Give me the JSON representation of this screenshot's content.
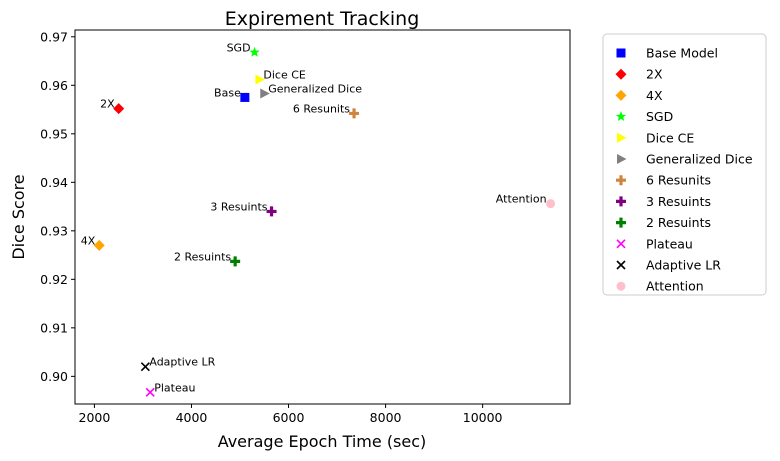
{
  "chart_data": {
    "type": "scatter",
    "title": "Expirement Tracking",
    "xlabel": "Average Epoch Time (sec)",
    "ylabel": "Dice Score",
    "xlim": [
      1600,
      11800
    ],
    "ylim": [
      0.8943,
      0.9714
    ],
    "xticks": [
      2000,
      4000,
      6000,
      8000,
      10000
    ],
    "yticks": [
      0.9,
      0.91,
      0.92,
      0.93,
      0.94,
      0.95,
      0.96,
      0.97
    ],
    "grid": false,
    "legend_position": "outside-right",
    "series": [
      {
        "name": "Base Model",
        "marker": "square",
        "color": "#0000ff",
        "x": 5100,
        "y": 0.9575,
        "label": "Base",
        "label_align": "right"
      },
      {
        "name": "2X",
        "marker": "diamond",
        "color": "#ff0000",
        "x": 2500,
        "y": 0.9552,
        "label": "2X",
        "label_align": "right"
      },
      {
        "name": "4X",
        "marker": "diamond",
        "color": "#ffa500",
        "x": 2100,
        "y": 0.927,
        "label": "4X",
        "label_align": "right"
      },
      {
        "name": "SGD",
        "marker": "star",
        "color": "#00ff00",
        "x": 5300,
        "y": 0.9668,
        "label": "SGD",
        "label_align": "right"
      },
      {
        "name": "Dice CE",
        "marker": "triangle-right",
        "color": "#ffff00",
        "x": 5400,
        "y": 0.9612,
        "label": "Dice CE",
        "label_align": "left"
      },
      {
        "name": "Generalized Dice",
        "marker": "triangle-right",
        "color": "#808080",
        "x": 5500,
        "y": 0.9583,
        "label": "Generalized Dice",
        "label_align": "left"
      },
      {
        "name": "6 Resunits",
        "marker": "plus",
        "color": "#cd853f",
        "x": 7350,
        "y": 0.9542,
        "label": "6 Resunits",
        "label_align": "right"
      },
      {
        "name": "3 Resuints",
        "marker": "plus",
        "color": "#800080",
        "x": 5650,
        "y": 0.934,
        "label": "3 Resuints",
        "label_align": "right"
      },
      {
        "name": "2 Resuints",
        "marker": "plus",
        "color": "#008000",
        "x": 4900,
        "y": 0.9237,
        "label": "2 Resuints",
        "label_align": "right"
      },
      {
        "name": "Plateau",
        "marker": "x",
        "color": "#ff00ff",
        "x": 3150,
        "y": 0.8967,
        "label": "Plateau",
        "label_align": "left"
      },
      {
        "name": "Adaptive LR",
        "marker": "x",
        "color": "#000000",
        "x": 3050,
        "y": 0.902,
        "label": "Adaptive LR",
        "label_align": "left"
      },
      {
        "name": "Attention",
        "marker": "circle",
        "color": "#ffc0cb",
        "x": 11400,
        "y": 0.9356,
        "label": "Attention",
        "label_align": "right"
      }
    ]
  }
}
